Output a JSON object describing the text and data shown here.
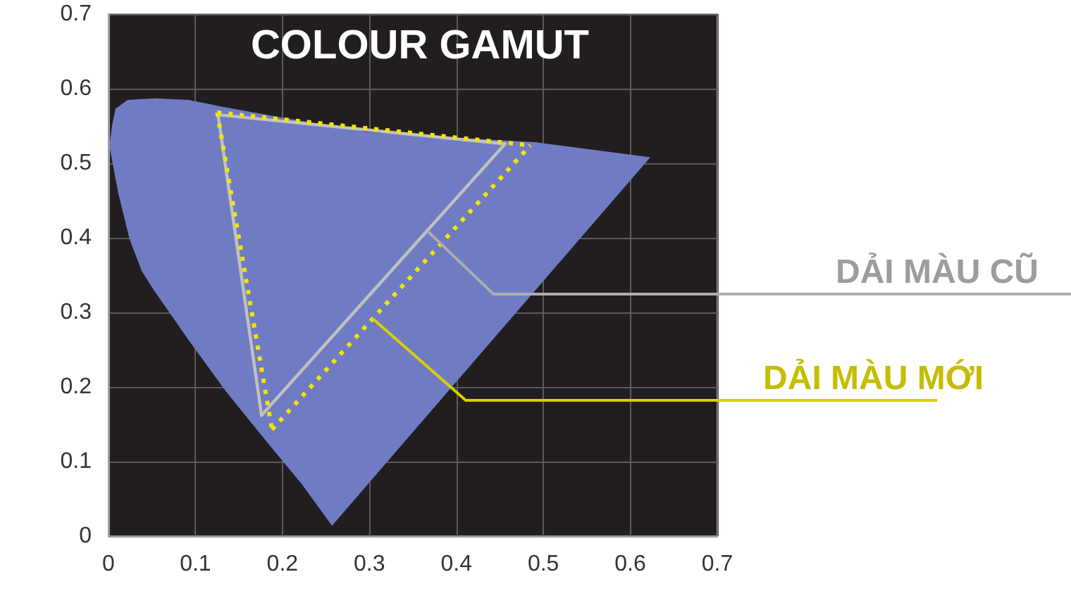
{
  "chart_data": {
    "type": "line",
    "title": "COLOUR GAMUT",
    "xlim": [
      0,
      0.7
    ],
    "ylim": [
      0,
      0.7
    ],
    "xticks": [
      0,
      0.1,
      0.2,
      0.3,
      0.4,
      0.5,
      0.6,
      0.7
    ],
    "yticks": [
      0,
      0.1,
      0.2,
      0.3,
      0.4,
      0.5,
      0.6,
      0.7
    ],
    "grid": true,
    "marker": "none",
    "series": [
      {
        "type": "area",
        "color": "#6f7cc4",
        "x": [
          0.001,
          0.004,
          0.008,
          0.022,
          0.054,
          0.092,
          0.13,
          0.2,
          0.297,
          0.416,
          0.492,
          0.623,
          0.257,
          0.222,
          0.178,
          0.135,
          0.092,
          0.052,
          0.038,
          0.024,
          0.011,
          0.001
        ],
        "values": [
          0.523,
          0.55,
          0.573,
          0.585,
          0.587,
          0.585,
          0.576,
          0.561,
          0.542,
          0.533,
          0.528,
          0.508,
          0.014,
          0.07,
          0.132,
          0.194,
          0.263,
          0.33,
          0.356,
          0.399,
          0.461,
          0.523
        ]
      },
      {
        "color": "#c0c0c0",
        "line_style": "solid",
        "x": [
          0.126,
          0.456
        ],
        "values": [
          0.565,
          0.526
        ]
      },
      {
        "name": "DẢI MÀU CŨ",
        "color": "#c0c0c0",
        "line_style": "solid",
        "x": [
          0.176,
          0.456
        ],
        "values": [
          0.162,
          0.526
        ]
      },
      {
        "color": "#c0c0c0",
        "line_style": "solid",
        "x": [
          0.126,
          0.176
        ],
        "values": [
          0.565,
          0.162
        ]
      },
      {
        "color": "#f2e600",
        "line_style": "dotted",
        "x": [
          0.125,
          0.485
        ],
        "values": [
          0.568,
          0.524
        ]
      },
      {
        "name": "DẢI MÀU MỚI",
        "color": "#f2e600",
        "line_style": "dotted",
        "x": [
          0.188,
          0.485
        ],
        "values": [
          0.143,
          0.524
        ]
      },
      {
        "color": "#f2e600",
        "line_style": "dotted",
        "x": [
          0.125,
          0.188
        ],
        "values": [
          0.568,
          0.143
        ]
      }
    ]
  }
}
